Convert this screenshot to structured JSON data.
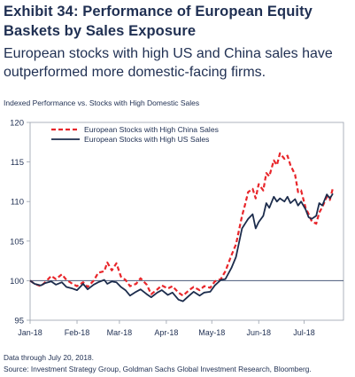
{
  "header": {
    "title": "Exhibit 34: Performance of European Equity Baskets by Sales Exposure",
    "subtitle": "European stocks with high US and China sales have outperformed more domestic-facing firms."
  },
  "footnotes": {
    "line1": "Data through July 20, 2018.",
    "line2": "Source: Investment Strategy Group, Goldman Sachs Global Investment Research, Bloomberg."
  },
  "chart_data": {
    "type": "line",
    "ylabel": "Indexed Performance vs. Stocks with High Domestic Sales",
    "ylim": [
      95,
      120
    ],
    "yticks": [
      95,
      100,
      105,
      110,
      115,
      120
    ],
    "xlim": [
      "2018-01-01",
      "2018-07-27"
    ],
    "xticks": [
      {
        "date": "2018-01-01",
        "label": "Jan-18"
      },
      {
        "date": "2018-02-01",
        "label": "Feb-18"
      },
      {
        "date": "2018-03-01",
        "label": "Mar-18"
      },
      {
        "date": "2018-04-01",
        "label": "Apr-18"
      },
      {
        "date": "2018-05-01",
        "label": "May-18"
      },
      {
        "date": "2018-06-01",
        "label": "Jun-18"
      },
      {
        "date": "2018-07-01",
        "label": "Jul-18"
      }
    ],
    "reference_line": 100,
    "grid": false,
    "legend_position": "top-center",
    "series": [
      {
        "name": "European Stocks with High China Sales",
        "color": "#e8262b",
        "dash": true,
        "points": [
          [
            "2018-01-01",
            100.0
          ],
          [
            "2018-01-04",
            99.6
          ],
          [
            "2018-01-08",
            99.3
          ],
          [
            "2018-01-11",
            99.8
          ],
          [
            "2018-01-15",
            100.6
          ],
          [
            "2018-01-18",
            100.2
          ],
          [
            "2018-01-22",
            100.8
          ],
          [
            "2018-01-25",
            100.1
          ],
          [
            "2018-01-29",
            99.6
          ],
          [
            "2018-02-01",
            99.3
          ],
          [
            "2018-02-05",
            99.8
          ],
          [
            "2018-02-08",
            99.2
          ],
          [
            "2018-02-12",
            100.0
          ],
          [
            "2018-02-15",
            101.0
          ],
          [
            "2018-02-19",
            101.2
          ],
          [
            "2018-02-21",
            102.3
          ],
          [
            "2018-02-24",
            101.3
          ],
          [
            "2018-02-27",
            102.2
          ],
          [
            "2018-03-02",
            100.5
          ],
          [
            "2018-03-05",
            100.1
          ],
          [
            "2018-03-08",
            99.3
          ],
          [
            "2018-03-12",
            99.6
          ],
          [
            "2018-03-15",
            100.3
          ],
          [
            "2018-03-19",
            99.5
          ],
          [
            "2018-03-22",
            98.3
          ],
          [
            "2018-03-26",
            98.9
          ],
          [
            "2018-03-29",
            99.4
          ],
          [
            "2018-04-02",
            99.0
          ],
          [
            "2018-04-05",
            99.3
          ],
          [
            "2018-04-09",
            98.5
          ],
          [
            "2018-04-12",
            98.1
          ],
          [
            "2018-04-16",
            98.8
          ],
          [
            "2018-04-19",
            99.2
          ],
          [
            "2018-04-23",
            98.8
          ],
          [
            "2018-04-26",
            99.3
          ],
          [
            "2018-04-30",
            99.1
          ],
          [
            "2018-05-03",
            99.9
          ],
          [
            "2018-05-07",
            100.2
          ],
          [
            "2018-05-10",
            101.2
          ],
          [
            "2018-05-14",
            103.2
          ],
          [
            "2018-05-17",
            104.6
          ],
          [
            "2018-05-21",
            108.2
          ],
          [
            "2018-05-23",
            109.6
          ],
          [
            "2018-05-25",
            111.2
          ],
          [
            "2018-05-28",
            111.6
          ],
          [
            "2018-05-30",
            110.4
          ],
          [
            "2018-06-01",
            112.2
          ],
          [
            "2018-06-04",
            111.4
          ],
          [
            "2018-06-06",
            113.6
          ],
          [
            "2018-06-08",
            113.2
          ],
          [
            "2018-06-11",
            115.2
          ],
          [
            "2018-06-13",
            114.6
          ],
          [
            "2018-06-15",
            116.1
          ],
          [
            "2018-06-18",
            115.4
          ],
          [
            "2018-06-20",
            115.8
          ],
          [
            "2018-06-22",
            114.6
          ],
          [
            "2018-06-25",
            113.4
          ],
          [
            "2018-06-27",
            111.2
          ],
          [
            "2018-06-29",
            111.4
          ],
          [
            "2018-07-02",
            109.2
          ],
          [
            "2018-07-04",
            108.4
          ],
          [
            "2018-07-06",
            107.5
          ],
          [
            "2018-07-09",
            107.2
          ],
          [
            "2018-07-11",
            108.6
          ],
          [
            "2018-07-13",
            109.3
          ],
          [
            "2018-07-16",
            110.6
          ],
          [
            "2018-07-18",
            110.2
          ],
          [
            "2018-07-20",
            111.7
          ]
        ]
      },
      {
        "name": "European Stocks with High US Sales",
        "color": "#1c2c4c",
        "dash": false,
        "points": [
          [
            "2018-01-01",
            100.0
          ],
          [
            "2018-01-04",
            99.6
          ],
          [
            "2018-01-08",
            99.4
          ],
          [
            "2018-01-11",
            99.7
          ],
          [
            "2018-01-15",
            99.9
          ],
          [
            "2018-01-18",
            99.5
          ],
          [
            "2018-01-22",
            99.8
          ],
          [
            "2018-01-25",
            99.2
          ],
          [
            "2018-01-29",
            99.0
          ],
          [
            "2018-02-01",
            98.8
          ],
          [
            "2018-02-05",
            99.6
          ],
          [
            "2018-02-08",
            98.9
          ],
          [
            "2018-02-12",
            99.5
          ],
          [
            "2018-02-15",
            99.8
          ],
          [
            "2018-02-19",
            100.1
          ],
          [
            "2018-02-21",
            99.6
          ],
          [
            "2018-02-24",
            99.9
          ],
          [
            "2018-02-27",
            99.8
          ],
          [
            "2018-03-02",
            99.2
          ],
          [
            "2018-03-05",
            98.8
          ],
          [
            "2018-03-08",
            98.1
          ],
          [
            "2018-03-12",
            98.6
          ],
          [
            "2018-03-15",
            98.9
          ],
          [
            "2018-03-19",
            98.3
          ],
          [
            "2018-03-22",
            97.9
          ],
          [
            "2018-03-26",
            98.5
          ],
          [
            "2018-03-29",
            98.8
          ],
          [
            "2018-04-02",
            98.2
          ],
          [
            "2018-04-05",
            98.5
          ],
          [
            "2018-04-09",
            97.6
          ],
          [
            "2018-04-12",
            97.4
          ],
          [
            "2018-04-16",
            98.1
          ],
          [
            "2018-04-19",
            98.6
          ],
          [
            "2018-04-23",
            98.1
          ],
          [
            "2018-04-26",
            98.5
          ],
          [
            "2018-04-30",
            98.6
          ],
          [
            "2018-05-03",
            99.4
          ],
          [
            "2018-05-07",
            100.1
          ],
          [
            "2018-05-10",
            100.2
          ],
          [
            "2018-05-14",
            101.6
          ],
          [
            "2018-05-17",
            103.0
          ],
          [
            "2018-05-21",
            106.6
          ],
          [
            "2018-05-23",
            107.2
          ],
          [
            "2018-05-25",
            107.8
          ],
          [
            "2018-05-28",
            108.4
          ],
          [
            "2018-05-30",
            106.6
          ],
          [
            "2018-06-01",
            107.4
          ],
          [
            "2018-06-04",
            108.2
          ],
          [
            "2018-06-06",
            109.8
          ],
          [
            "2018-06-08",
            109.2
          ],
          [
            "2018-06-11",
            110.6
          ],
          [
            "2018-06-13",
            110.0
          ],
          [
            "2018-06-15",
            110.4
          ],
          [
            "2018-06-18",
            110.0
          ],
          [
            "2018-06-20",
            110.6
          ],
          [
            "2018-06-22",
            109.8
          ],
          [
            "2018-06-25",
            110.3
          ],
          [
            "2018-06-27",
            109.5
          ],
          [
            "2018-06-29",
            110.0
          ],
          [
            "2018-07-02",
            109.0
          ],
          [
            "2018-07-04",
            108.0
          ],
          [
            "2018-07-06",
            107.8
          ],
          [
            "2018-07-09",
            108.2
          ],
          [
            "2018-07-11",
            109.8
          ],
          [
            "2018-07-13",
            109.5
          ],
          [
            "2018-07-16",
            110.9
          ],
          [
            "2018-07-18",
            110.4
          ],
          [
            "2018-07-20",
            111.0
          ]
        ]
      }
    ]
  }
}
